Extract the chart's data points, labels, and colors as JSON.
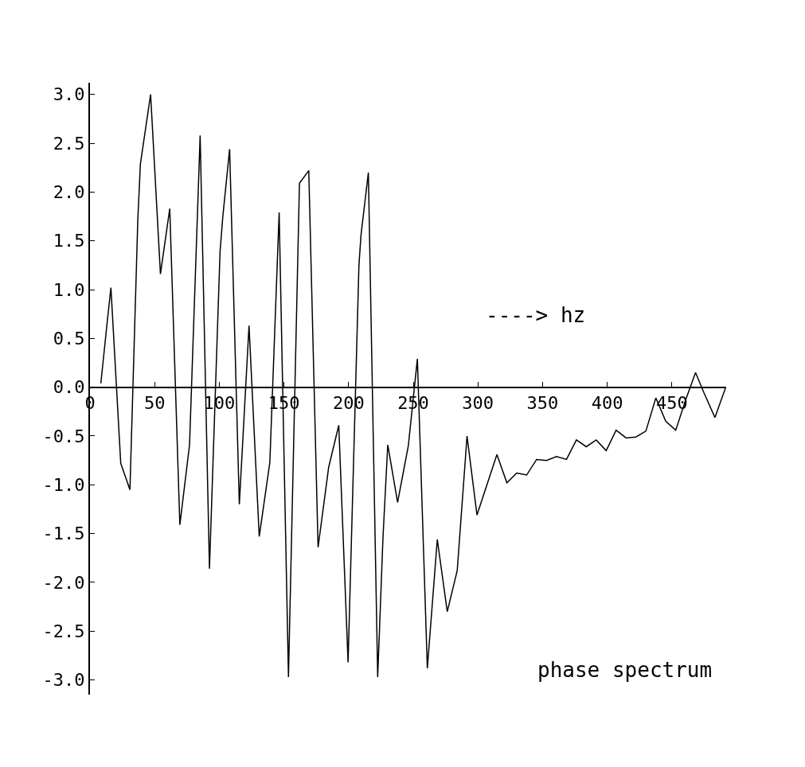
{
  "chart_data": {
    "type": "line",
    "x": [
      8.4,
      13.5,
      16.2,
      23.8,
      30.9,
      37,
      39,
      46.9,
      54.5,
      61.7,
      69.5,
      77,
      85.2,
      92.4,
      100.6,
      102.8,
      108,
      115.5,
      123,
      130.9,
      139.1,
      146.3,
      153.5,
      155.9,
      162,
      169.2,
      176.4,
      184.6,
      192.4,
      199.6,
      208,
      209.6,
      215.3,
      222.5,
      226.6,
      230.3,
      237.9,
      246.2,
      253.2,
      260.9,
      268.6,
      276.3,
      284,
      291.6,
      299.3,
      314.7,
      322.4,
      330,
      337.7,
      345.4,
      353.1,
      360.8,
      368.5,
      376.2,
      383.8,
      391.5,
      399.2,
      406.9,
      414.6,
      422.2,
      429.9,
      437.6,
      445.3,
      453,
      460.7,
      468.3,
      474.9,
      483.3,
      491.4
    ],
    "series": [
      {
        "color": "#000000",
        "values": [
          0.04,
          0.69,
          1.02,
          -0.78,
          -1.05,
          1.72,
          2.29,
          3.0,
          1.16,
          1.83,
          -1.41,
          -0.59,
          2.58,
          -1.86,
          1.39,
          1.76,
          2.44,
          -1.2,
          0.63,
          -1.53,
          -0.77,
          1.79,
          -2.97,
          -1.54,
          2.09,
          2.22,
          -1.64,
          -0.82,
          -0.39,
          -2.82,
          1.25,
          1.56,
          2.2,
          -2.97,
          -1.54,
          -0.59,
          -1.18,
          -0.6,
          0.29,
          -2.88,
          -1.56,
          -2.3,
          -1.88,
          -0.5,
          -1.31,
          -0.69,
          -0.98,
          -0.88,
          -0.9,
          -0.74,
          -0.75,
          -0.71,
          -0.74,
          -0.54,
          -0.61,
          -0.54,
          -0.65,
          -0.44,
          -0.52,
          -0.51,
          -0.45,
          -0.11,
          -0.35,
          -0.44,
          -0.13,
          0.15,
          -0.06,
          -0.31,
          -0.01
        ]
      }
    ],
    "xlim": [
      0,
      492
    ],
    "ylim": [
      -3.15,
      3.12
    ],
    "xticks": [
      0,
      50,
      100,
      150,
      200,
      250,
      300,
      350,
      400,
      450
    ],
    "yticks": [
      {
        "value": 3,
        "label": "3.0"
      },
      {
        "value": 2.5,
        "label": "2.5"
      },
      {
        "value": 2,
        "label": "2.0"
      },
      {
        "value": 1.5,
        "label": "1.5"
      },
      {
        "value": 1,
        "label": "1.0"
      },
      {
        "value": 0.5,
        "label": "0.5"
      },
      {
        "value": 0,
        "label": "0.0"
      },
      {
        "value": -0.5,
        "label": "-0.5"
      },
      {
        "value": -1,
        "label": "-1.0"
      },
      {
        "value": -1.5,
        "label": "-1.5"
      },
      {
        "value": -2,
        "label": "-2.0"
      },
      {
        "value": -2.5,
        "label": "-2.5"
      },
      {
        "value": -3,
        "label": "-3.0"
      }
    ],
    "annotations": [
      "----> hz",
      "phase spectrum"
    ],
    "marker": "none",
    "line_style": "solid"
  }
}
